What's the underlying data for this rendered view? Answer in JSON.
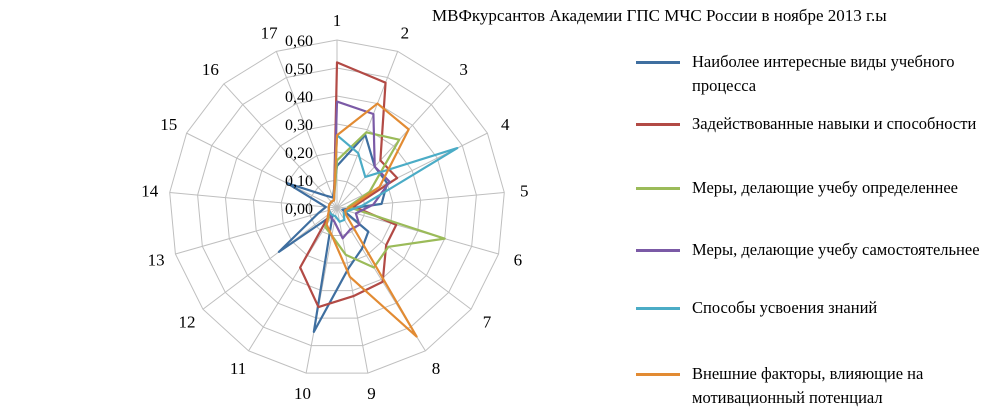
{
  "chart_data": {
    "type": "radar",
    "title": "МВФкурсантов Академии ГПС МЧС России в ноябре 2013 г.ы",
    "categories": [
      "1",
      "2",
      "3",
      "4",
      "5",
      "6",
      "7",
      "8",
      "9",
      "10",
      "11",
      "12",
      "13",
      "14",
      "15",
      "16",
      "17"
    ],
    "rlim": [
      0,
      0.6
    ],
    "r_ticks": [
      "0,00",
      "0,10",
      "0,20",
      "0,30",
      "0,40",
      "0,50",
      "0,60"
    ],
    "grid": true,
    "legend_position": "right",
    "series": [
      {
        "name": "Наиболее интересные виды учебного процесса",
        "color": "#3f6fa0",
        "values": [
          0.15,
          0.28,
          0.2,
          0.2,
          0.16,
          0.02,
          0.14,
          0.17,
          0.22,
          0.45,
          0.03,
          0.26,
          0.07,
          0.04,
          0.2,
          0.06,
          0.04
        ]
      },
      {
        "name": "Задействованные навыки и способности",
        "color": "#b24a45",
        "values": [
          0.52,
          0.48,
          0.23,
          0.24,
          0.06,
          0.22,
          0.22,
          0.31,
          0.32,
          0.36,
          0.25,
          0.03,
          0.03,
          0.03,
          0.03,
          0.03,
          0.03
        ]
      },
      {
        "name": "Меры, делающие учебу определеннее",
        "color": "#9bbb59",
        "values": [
          0.17,
          0.29,
          0.33,
          0.13,
          0.04,
          0.4,
          0.23,
          0.25,
          0.17,
          0.1,
          0.08,
          0.03,
          0.03,
          0.03,
          0.03,
          0.03,
          0.03
        ]
      },
      {
        "name": "Меры, делающие учебу самостоятельнее",
        "color": "#7b5aa6",
        "values": [
          0.38,
          0.36,
          0.2,
          0.21,
          0.13,
          0.07,
          0.1,
          0.09,
          0.11,
          0.05,
          0.04,
          0.03,
          0.03,
          0.03,
          0.03,
          0.03,
          0.03
        ]
      },
      {
        "name": "Способы усвоения знаний",
        "color": "#4bacc6",
        "values": [
          0.26,
          0.21,
          0.15,
          0.48,
          0.09,
          0.04,
          0.03,
          0.05,
          0.05,
          0.03,
          0.03,
          0.03,
          0.03,
          0.03,
          0.03,
          0.03,
          0.03
        ]
      },
      {
        "name": "Внешние факторы, влияющие на мотивационный потенциал",
        "color": "#e28b33",
        "values": [
          0.26,
          0.4,
          0.38,
          0.17,
          0.05,
          0.03,
          0.04,
          0.54,
          0.25,
          0.1,
          0.07,
          0.04,
          0.03,
          0.03,
          0.03,
          0.03,
          0.03
        ]
      }
    ]
  }
}
